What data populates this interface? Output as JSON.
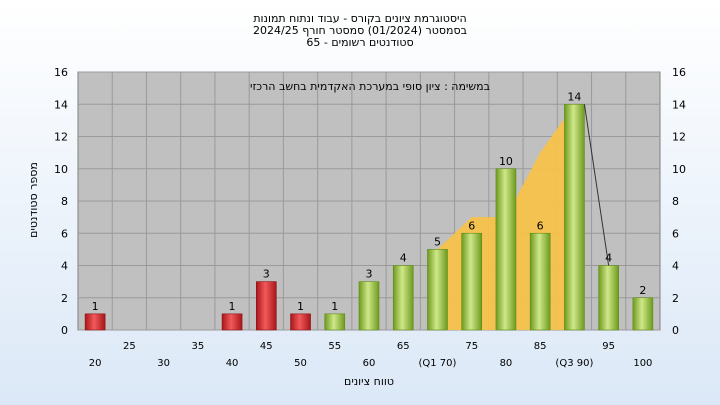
{
  "chart_data": {
    "type": "bar",
    "title_lines": [
      "היסטוגרמת ציונים בקורס - עבוד ונתוח תמונות",
      "בסמסטר  (01/2024)  סמסטר חורף 2024/25",
      "סטודנטים רשומים - 65"
    ],
    "annotation": "במשימה : ציון סופי במערכת האקדמית בחשב הרכזי",
    "xlabel": "טווח ציונים",
    "ylabel": "מספר סטודנטים",
    "ylim": [
      0,
      16
    ],
    "yticks": [
      0,
      2,
      4,
      6,
      8,
      10,
      12,
      14,
      16
    ],
    "grid": true,
    "x_bottom_labels": [
      "20",
      "30",
      "40",
      "50",
      "60",
      "(Q1 70)",
      "80",
      "(Q3 90)",
      "100"
    ],
    "x_top_labels": [
      "25",
      "35",
      "45",
      "55",
      "65",
      "75",
      "85",
      "95"
    ],
    "categories": [
      "20",
      "25",
      "30",
      "35",
      "40",
      "45",
      "50",
      "55",
      "60",
      "65",
      "70",
      "75",
      "80",
      "85",
      "90",
      "95",
      "100"
    ],
    "values": [
      1,
      0,
      0,
      0,
      1,
      3,
      1,
      1,
      3,
      4,
      5,
      6,
      10,
      6,
      14,
      4,
      2
    ],
    "data_labels": [
      "1",
      "",
      "",
      "",
      "1",
      "3",
      "1",
      "1",
      "3",
      "4",
      "5",
      "6",
      "10",
      "6",
      "14",
      "4",
      "2"
    ],
    "bar_groups": [
      "fail",
      "none",
      "none",
      "none",
      "fail",
      "fail",
      "fail",
      "pass",
      "pass",
      "pass",
      "pass",
      "pass",
      "pass",
      "pass",
      "pass",
      "pass",
      "pass"
    ],
    "interquartile_band": {
      "x": [
        "70",
        "75",
        "80",
        "85",
        "90"
      ],
      "y": [
        5,
        7,
        7,
        11,
        14
      ]
    },
    "colors": {
      "fail": "#d42a2a",
      "pass": "#8fbc2e",
      "band": "#f6c24a",
      "plot_bg": "#c0c0c0"
    }
  }
}
